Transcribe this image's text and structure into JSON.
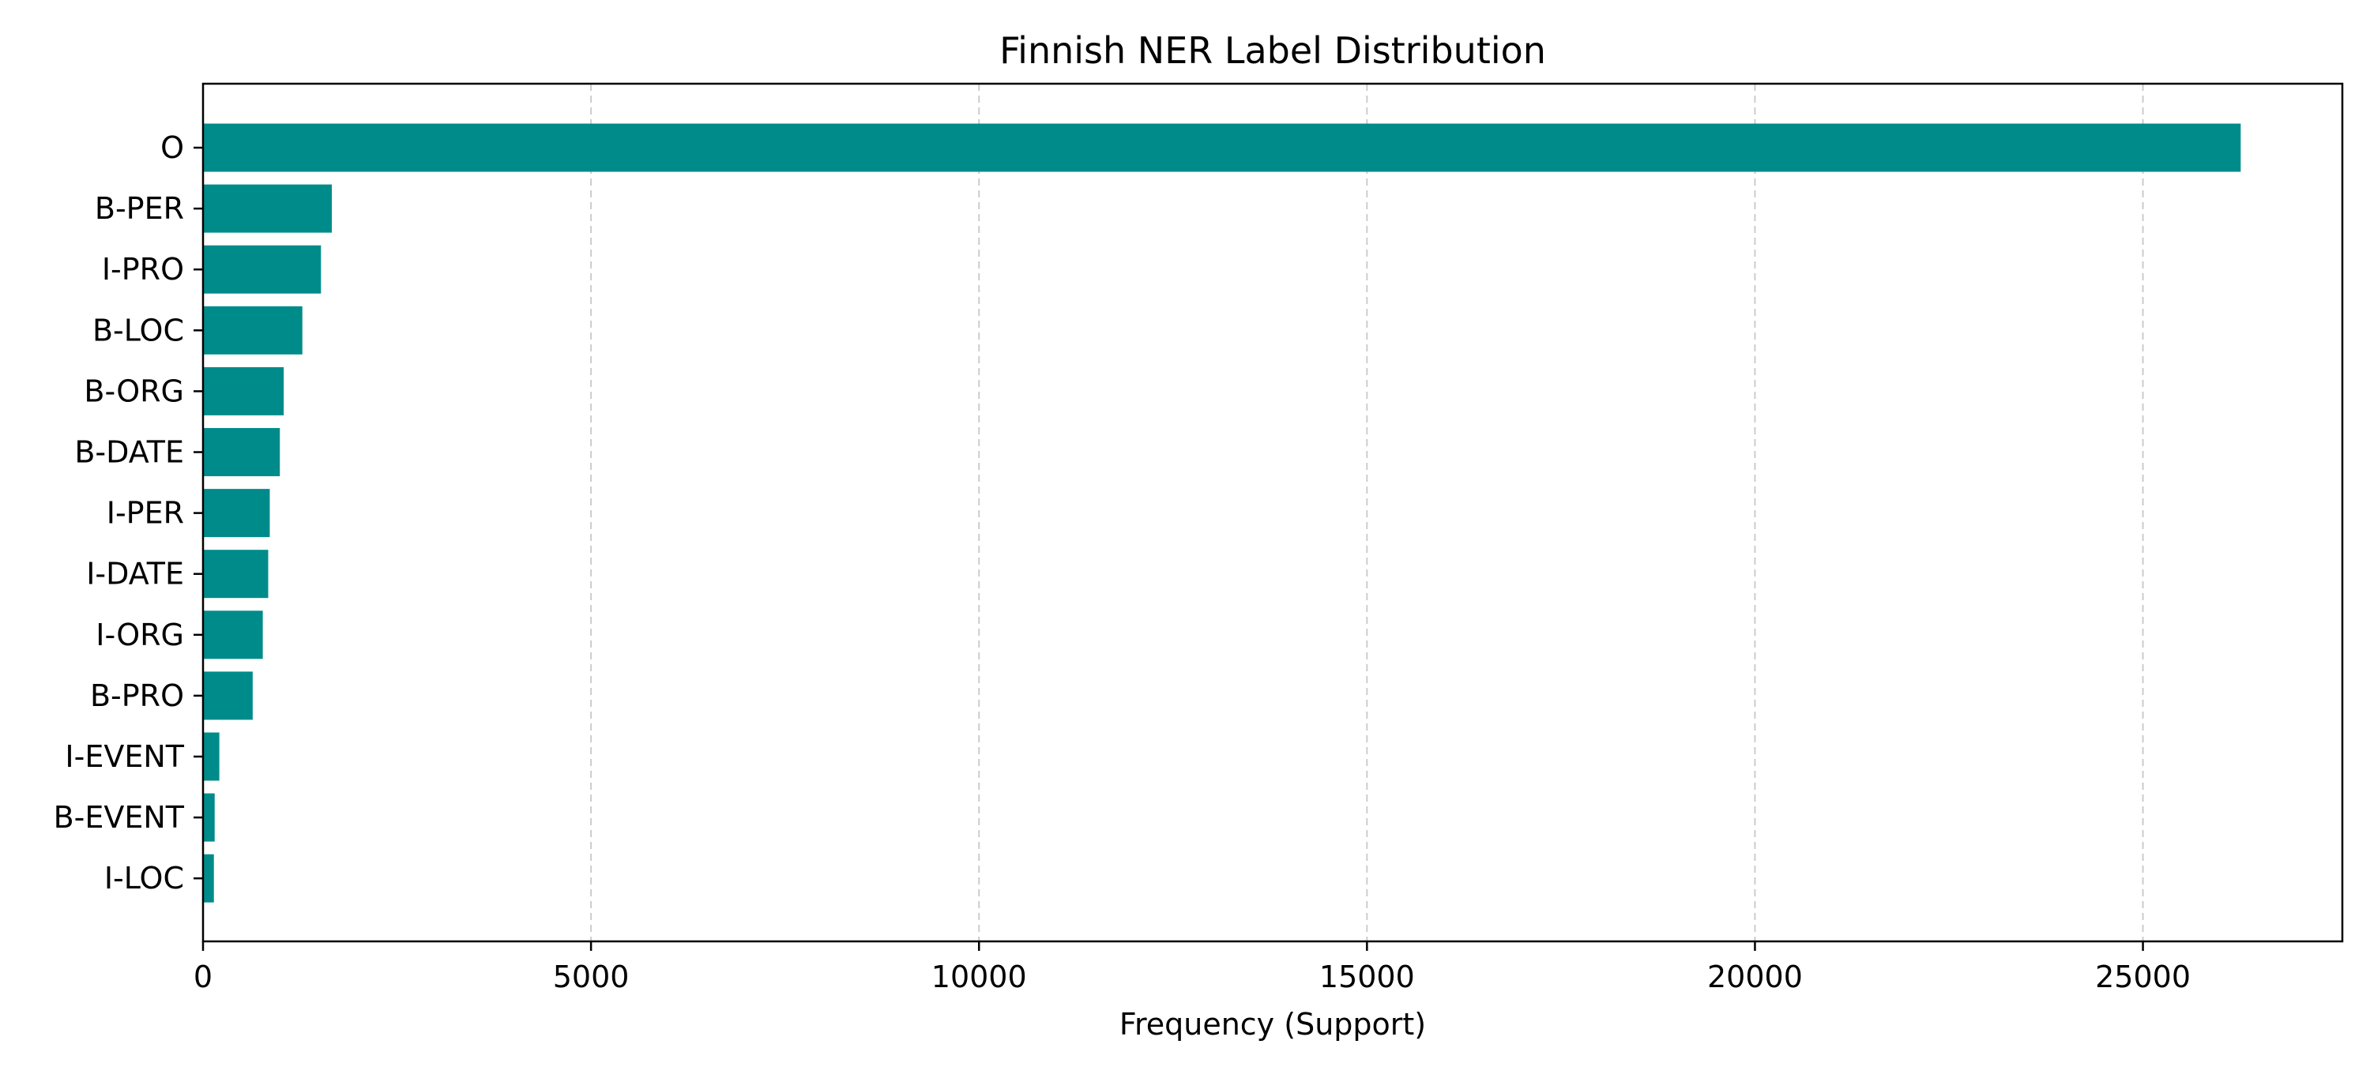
{
  "chart_data": {
    "type": "bar",
    "orientation": "horizontal",
    "title": "Finnish NER Label Distribution",
    "xlabel": "Frequency (Support)",
    "ylabel": "",
    "categories": [
      "O",
      "B-PER",
      "I-PRO",
      "B-LOC",
      "B-ORG",
      "B-DATE",
      "I-PER",
      "I-DATE",
      "I-ORG",
      "B-PRO",
      "I-EVENT",
      "B-EVENT",
      "I-LOC"
    ],
    "values": [
      26260,
      1660,
      1520,
      1280,
      1040,
      990,
      860,
      840,
      770,
      640,
      210,
      150,
      140
    ],
    "xlim": [
      0,
      27570
    ],
    "xticks": [
      0,
      5000,
      10000,
      15000,
      20000,
      25000
    ],
    "grid": "x-dashed",
    "bar_color": "#008b8b"
  }
}
